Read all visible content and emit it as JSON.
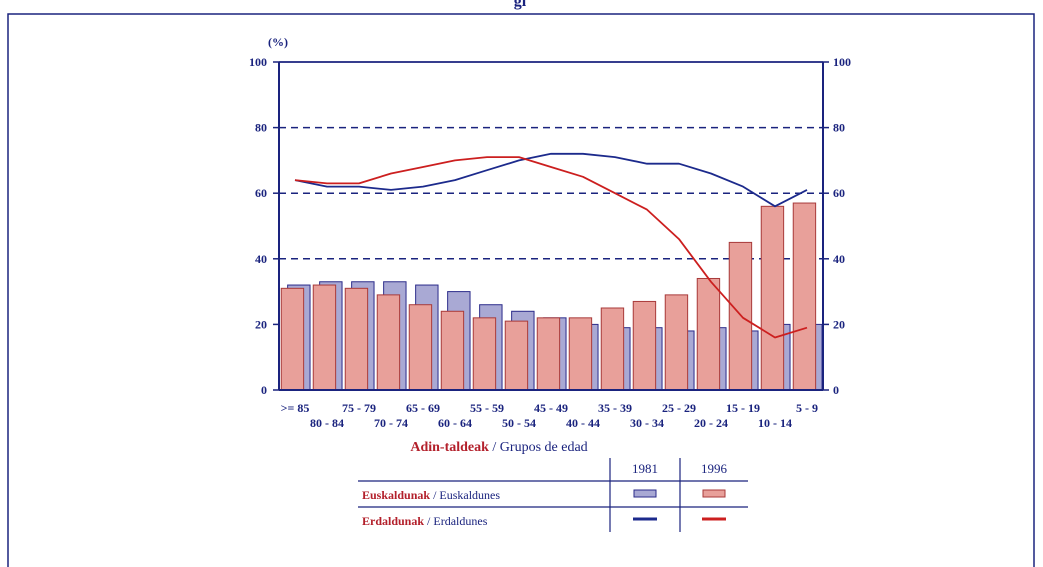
{
  "header_text": "gi",
  "chart_data": {
    "type": "bar",
    "title": "",
    "yunit_label": "(%)",
    "ylim": [
      0,
      100
    ],
    "yticks": [
      0,
      20,
      40,
      60,
      80,
      100
    ],
    "grid": "dashed at 40, 60, 80",
    "categories": [
      ">= 85",
      "80 - 84",
      "75 - 79",
      "70 - 74",
      "65 - 69",
      "60 - 64",
      "55 - 59",
      "50 - 54",
      "45 - 49",
      "40 - 44",
      "35 - 39",
      "30 - 34",
      "25 - 29",
      "20 - 24",
      "15 - 19",
      "10 - 14",
      "5 - 9"
    ],
    "xlabel_bold": "Adin-taldeak",
    "xlabel_rest": " / Grupos de edad",
    "series": [
      {
        "name": "Euskaldunak / Euskaldunes 1981",
        "kind": "bar",
        "values": [
          32,
          33,
          33,
          33,
          32,
          30,
          26,
          24,
          22,
          20,
          19,
          19,
          18,
          19,
          18,
          20,
          20
        ]
      },
      {
        "name": "Euskaldunak / Euskaldunes 1996",
        "kind": "bar",
        "values": [
          31,
          32,
          31,
          29,
          26,
          24,
          22,
          21,
          22,
          22,
          25,
          27,
          29,
          34,
          45,
          56,
          57
        ]
      },
      {
        "name": "Erdaldunak / Erdaldunes 1981",
        "kind": "line",
        "values": [
          64,
          62,
          62,
          61,
          62,
          64,
          67,
          70,
          72,
          72,
          71,
          69,
          69,
          66,
          62,
          56,
          61
        ]
      },
      {
        "name": "Erdaldunak / Erdaldunes 1996",
        "kind": "line",
        "values": [
          64,
          63,
          63,
          66,
          68,
          70,
          71,
          71,
          68,
          65,
          60,
          55,
          46,
          33,
          22,
          16,
          19
        ]
      }
    ],
    "colors": {
      "axis": "#1a237e",
      "bar1981_fill": "#a9a9d4",
      "bar1981_edge": "#2b2b8a",
      "bar1996_fill": "#e8a09a",
      "bar1996_edge": "#a83a3a",
      "line1981": "#1c2a8c",
      "line1996": "#cc1f1f",
      "red_text": "#b3202b"
    }
  },
  "legend": {
    "year1": "1981",
    "year2": "1996",
    "row1_bold": "Euskaldunak",
    "row1_rest": " / Euskaldunes",
    "row2_bold": "Erdaldunak",
    "row2_rest": " / Erdaldunes"
  }
}
